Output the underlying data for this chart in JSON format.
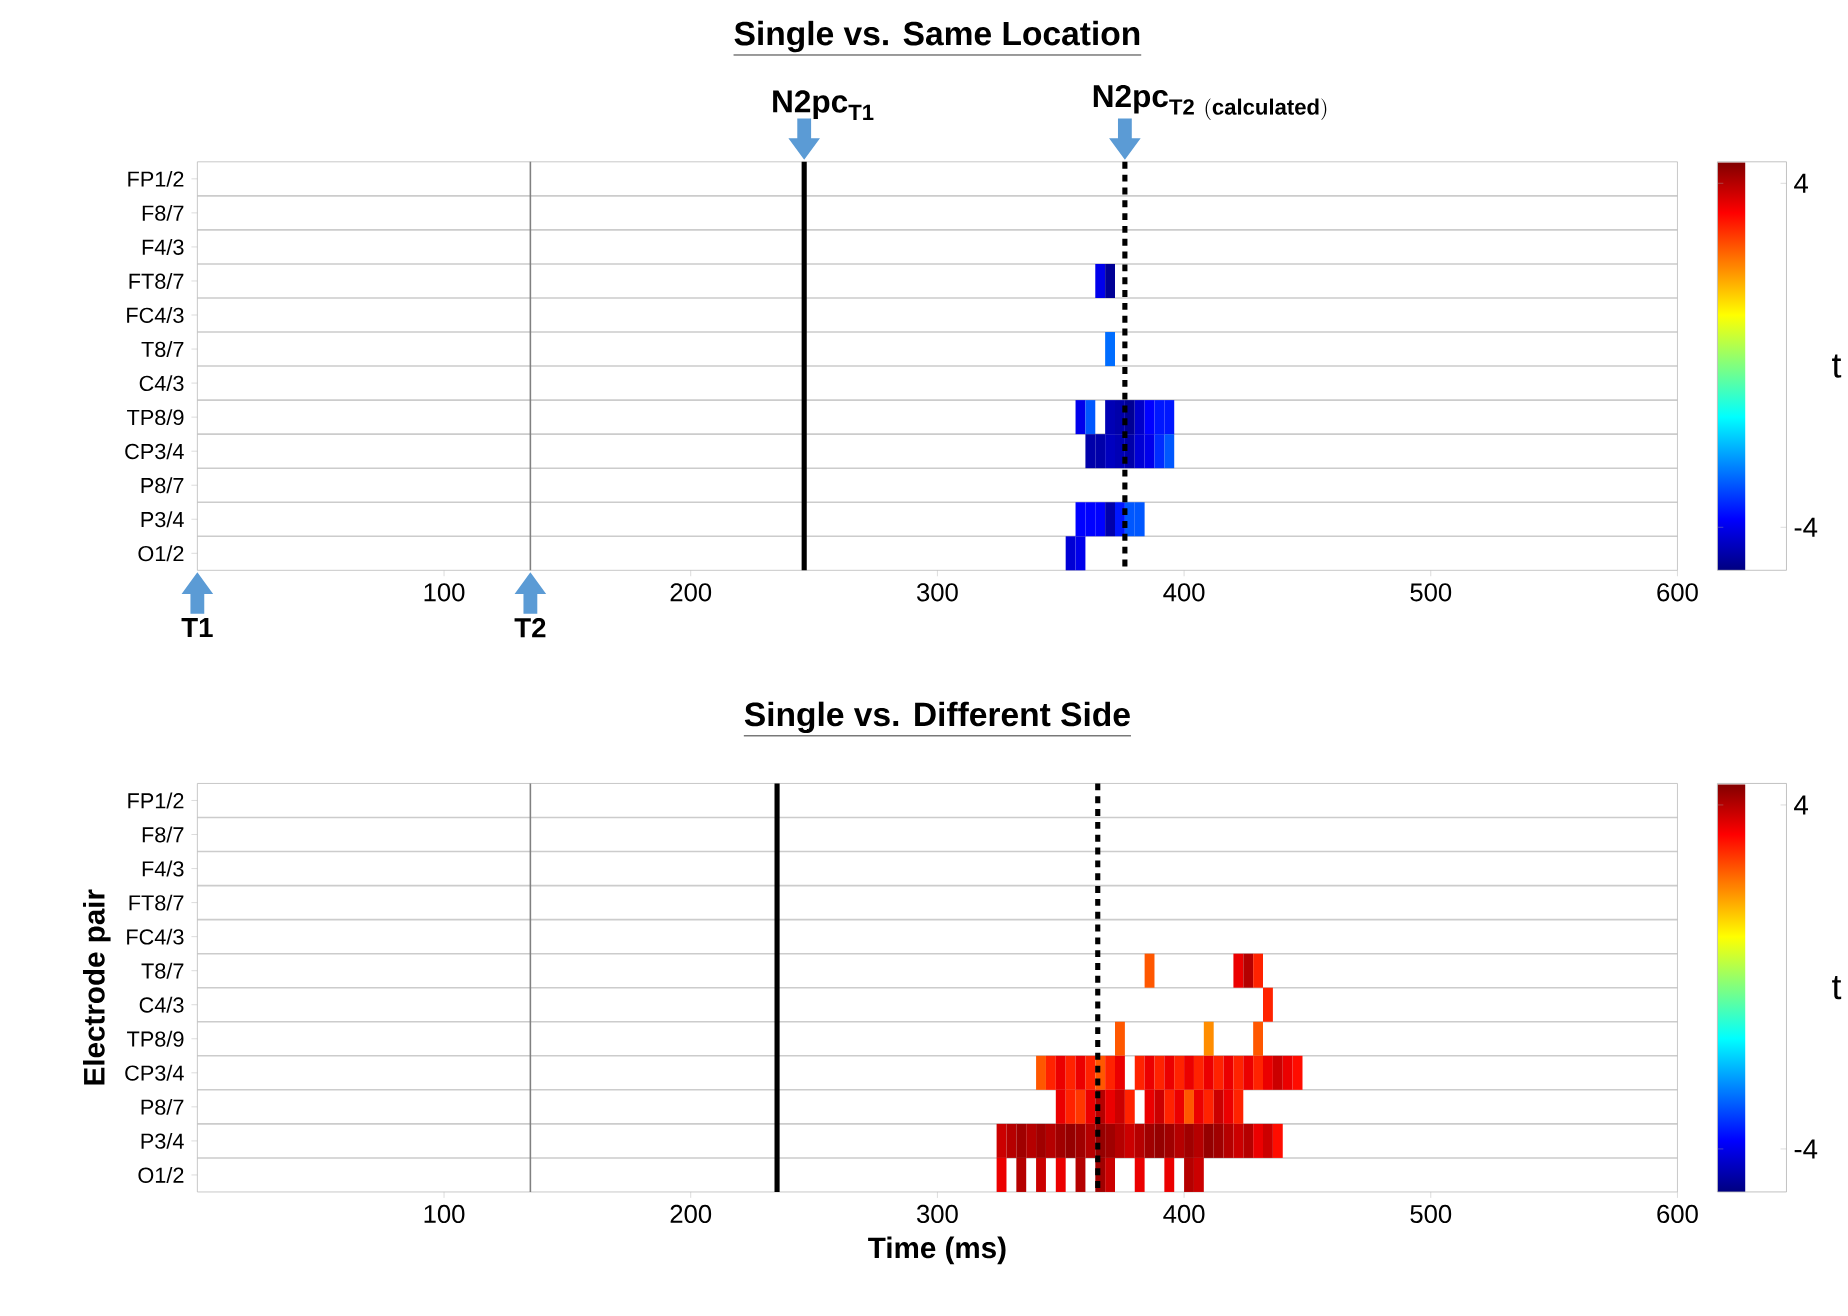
{
  "chart_data": [
    {
      "type": "heatmap",
      "title": "Single vs. Same Location",
      "x": [
        322,
        326,
        330,
        334,
        338,
        342,
        346,
        350,
        354,
        358,
        362,
        366,
        370,
        374,
        378,
        382,
        386,
        390,
        394,
        398,
        402,
        406,
        410,
        414,
        418,
        422,
        426,
        430,
        434,
        438,
        442,
        446,
        450
      ],
      "y_categories": [
        "FP1/2",
        "F8/7",
        "F4/3",
        "FT8/7",
        "FC4/3",
        "T8/7",
        "C4/3",
        "TP8/9",
        "CP3/4",
        "P8/7",
        "P3/4",
        "O1/2"
      ],
      "cells": [
        [
          null,
          null,
          null,
          null,
          null,
          null,
          null,
          null,
          null,
          null,
          null,
          null,
          null,
          null,
          null,
          null,
          null,
          null,
          null,
          null,
          null,
          null,
          null,
          null,
          null,
          null,
          null,
          null,
          null,
          null,
          null,
          null,
          null
        ],
        [
          null,
          null,
          null,
          null,
          null,
          null,
          null,
          null,
          null,
          null,
          null,
          null,
          null,
          null,
          null,
          null,
          null,
          null,
          null,
          null,
          null,
          null,
          null,
          null,
          null,
          null,
          null,
          null,
          null,
          null,
          null,
          null,
          null
        ],
        [
          null,
          null,
          null,
          null,
          null,
          null,
          null,
          null,
          null,
          null,
          null,
          null,
          null,
          null,
          null,
          null,
          null,
          null,
          null,
          null,
          null,
          null,
          null,
          null,
          null,
          null,
          null,
          null,
          null,
          null,
          null,
          null,
          null
        ],
        [
          null,
          null,
          null,
          null,
          null,
          null,
          null,
          null,
          null,
          null,
          null,
          -4,
          -4.8,
          null,
          null,
          null,
          null,
          null,
          null,
          null,
          null,
          null,
          null,
          null,
          null,
          null,
          null,
          null,
          null,
          null,
          null,
          null,
          null
        ],
        [
          null,
          null,
          null,
          null,
          null,
          null,
          null,
          null,
          null,
          null,
          null,
          null,
          null,
          null,
          null,
          null,
          null,
          null,
          null,
          null,
          null,
          null,
          null,
          null,
          null,
          null,
          null,
          null,
          null,
          null,
          null,
          null,
          null
        ],
        [
          null,
          null,
          null,
          null,
          null,
          null,
          null,
          null,
          null,
          null,
          null,
          null,
          -2.8,
          null,
          null,
          null,
          null,
          null,
          null,
          null,
          null,
          null,
          null,
          null,
          null,
          null,
          null,
          null,
          null,
          null,
          null,
          null,
          null
        ],
        [
          null,
          null,
          null,
          null,
          null,
          null,
          null,
          null,
          null,
          null,
          null,
          null,
          null,
          null,
          null,
          null,
          null,
          null,
          null,
          null,
          null,
          null,
          null,
          null,
          null,
          null,
          null,
          null,
          null,
          null,
          null,
          null,
          null
        ],
        [
          null,
          null,
          null,
          null,
          null,
          null,
          null,
          null,
          null,
          -4,
          -3,
          null,
          -4.5,
          -4.6,
          -4.8,
          -4.3,
          -3.8,
          -3.6,
          -3.6,
          null,
          null,
          null,
          null,
          null,
          null,
          null,
          null,
          null,
          null,
          null,
          null,
          null,
          null
        ],
        [
          null,
          null,
          null,
          null,
          null,
          null,
          null,
          null,
          null,
          null,
          -4.6,
          -4.6,
          -4.4,
          -4.5,
          -4.6,
          -4.2,
          -4,
          -3.4,
          -3,
          null,
          null,
          null,
          null,
          null,
          null,
          null,
          null,
          null,
          null,
          null,
          null,
          null,
          null
        ],
        [
          null,
          null,
          null,
          null,
          null,
          null,
          null,
          null,
          null,
          null,
          null,
          null,
          null,
          null,
          null,
          null,
          null,
          null,
          null,
          null,
          null,
          null,
          null,
          null,
          null,
          null,
          null,
          null,
          null,
          null,
          null,
          null,
          null
        ],
        [
          null,
          null,
          null,
          null,
          null,
          null,
          null,
          null,
          null,
          -3.8,
          -3.8,
          -3.8,
          -4.6,
          -3.6,
          -3,
          -3,
          null,
          null,
          null,
          null,
          null,
          null,
          null,
          null,
          null,
          null,
          null,
          null,
          null,
          null,
          null,
          null,
          null
        ],
        [
          null,
          null,
          null,
          null,
          null,
          null,
          null,
          null,
          -4.2,
          -4,
          null,
          null,
          null,
          null,
          null,
          null,
          null,
          null,
          null,
          null,
          null,
          null,
          null,
          null,
          null,
          null,
          null,
          null,
          null,
          null,
          null,
          null,
          null
        ]
      ],
      "xlim": [
        0,
        600
      ],
      "xticks": [
        100,
        200,
        300,
        400,
        500,
        600
      ],
      "clim": [
        -5,
        4.5
      ],
      "cticks": [
        -4,
        4
      ],
      "clabel": "t",
      "grid": "y",
      "ref_lines": [
        {
          "axis": "x",
          "value": 135,
          "label": "\\mathbf{T2}",
          "color": "#808080"
        },
        {
          "axis": "x",
          "value": 246,
          "label": "\\mathbf{N2pc}_{\\mathbf{T1}}",
          "color": "#000000",
          "line_style": "solid"
        },
        {
          "axis": "x",
          "value": 376,
          "label": "\\mathbf{N2pc}_{\\mathbf{T2}\\ \\mathbf{(calculated)}}",
          "color": "#000000",
          "line_style": "dashed"
        }
      ],
      "annotations": [
        "T1"
      ]
    },
    {
      "type": "heatmap",
      "title": "Single vs. Different Side",
      "xlabel": "Time (ms)",
      "ylabel": "Electrode pair",
      "x": [
        322,
        326,
        330,
        334,
        338,
        342,
        346,
        350,
        354,
        358,
        362,
        366,
        370,
        374,
        378,
        382,
        386,
        390,
        394,
        398,
        402,
        406,
        410,
        414,
        418,
        422,
        426,
        430,
        434,
        438,
        442,
        446,
        450
      ],
      "y_categories": [
        "FP1/2",
        "F8/7",
        "F4/3",
        "FT8/7",
        "FC4/3",
        "T8/7",
        "C4/3",
        "TP8/9",
        "CP3/4",
        "P8/7",
        "P3/4",
        "O1/2"
      ],
      "cells": [
        [
          null,
          null,
          null,
          null,
          null,
          null,
          null,
          null,
          null,
          null,
          null,
          null,
          null,
          null,
          null,
          null,
          null,
          null,
          null,
          null,
          null,
          null,
          null,
          null,
          null,
          null,
          null,
          null,
          null,
          null,
          null,
          null,
          null
        ],
        [
          null,
          null,
          null,
          null,
          null,
          null,
          null,
          null,
          null,
          null,
          null,
          null,
          null,
          null,
          null,
          null,
          null,
          null,
          null,
          null,
          null,
          null,
          null,
          null,
          null,
          null,
          null,
          null,
          null,
          null,
          null,
          null,
          null
        ],
        [
          null,
          null,
          null,
          null,
          null,
          null,
          null,
          null,
          null,
          null,
          null,
          null,
          null,
          null,
          null,
          null,
          null,
          null,
          null,
          null,
          null,
          null,
          null,
          null,
          null,
          null,
          null,
          null,
          null,
          null,
          null,
          null,
          null
        ],
        [
          null,
          null,
          null,
          null,
          null,
          null,
          null,
          null,
          null,
          null,
          null,
          null,
          null,
          null,
          null,
          null,
          null,
          null,
          null,
          null,
          null,
          null,
          null,
          null,
          null,
          null,
          null,
          null,
          null,
          null,
          null,
          null,
          null
        ],
        [
          null,
          null,
          null,
          null,
          null,
          null,
          null,
          null,
          null,
          null,
          null,
          null,
          null,
          null,
          null,
          null,
          null,
          null,
          null,
          null,
          null,
          null,
          null,
          null,
          null,
          null,
          null,
          null,
          null,
          null,
          null,
          null,
          null
        ],
        [
          null,
          null,
          null,
          null,
          null,
          null,
          null,
          null,
          null,
          null,
          null,
          null,
          null,
          null,
          null,
          null,
          2.5,
          null,
          null,
          null,
          null,
          null,
          null,
          null,
          null,
          3.5,
          4,
          3,
          null,
          null,
          null,
          null,
          null
        ],
        [
          null,
          null,
          null,
          null,
          null,
          null,
          null,
          null,
          null,
          null,
          null,
          null,
          null,
          null,
          null,
          null,
          null,
          null,
          null,
          null,
          null,
          null,
          null,
          null,
          null,
          null,
          null,
          null,
          3,
          null,
          null,
          null,
          null
        ],
        [
          null,
          null,
          null,
          null,
          null,
          null,
          null,
          null,
          null,
          null,
          null,
          null,
          null,
          2.5,
          null,
          null,
          null,
          null,
          null,
          null,
          null,
          null,
          2,
          null,
          null,
          null,
          null,
          2.5,
          null,
          null,
          null,
          null,
          null
        ],
        [
          null,
          null,
          null,
          null,
          null,
          2.5,
          3,
          3.5,
          3,
          3.5,
          3,
          2.5,
          3,
          3.5,
          null,
          3,
          3.5,
          3,
          3.5,
          3,
          3.5,
          3,
          3.5,
          3,
          3.5,
          3,
          3.5,
          3,
          3.5,
          3.8,
          3.5,
          3.2,
          null
        ],
        [
          null,
          null,
          null,
          null,
          null,
          null,
          null,
          3.5,
          3,
          2.8,
          3.5,
          4,
          3.5,
          3.8,
          3,
          null,
          3.5,
          3.8,
          3,
          3.5,
          2.5,
          3.5,
          3,
          3.8,
          3.5,
          3,
          null,
          null,
          null,
          null,
          null,
          null,
          null
        ],
        [
          null,
          3.8,
          4,
          4.2,
          4,
          4.2,
          4,
          4.2,
          4.3,
          4.2,
          4,
          4.3,
          4.2,
          4,
          3.8,
          4,
          4.2,
          4.3,
          4.2,
          4,
          4.2,
          4,
          4.3,
          4.2,
          4,
          3.8,
          4,
          3.5,
          3.8,
          3.2,
          null,
          null,
          null
        ],
        [
          null,
          3.5,
          null,
          4,
          null,
          3.8,
          null,
          3.5,
          null,
          4,
          null,
          4.2,
          3.8,
          null,
          null,
          3.5,
          null,
          null,
          3.5,
          null,
          4,
          3.8,
          null,
          null,
          null,
          null,
          null,
          null,
          null,
          null,
          null,
          null,
          null
        ]
      ],
      "xlim": [
        0,
        600
      ],
      "xticks": [
        100,
        200,
        300,
        400,
        500,
        600
      ],
      "clim": [
        -5,
        4.5
      ],
      "cticks": [
        -4,
        4
      ],
      "clabel": "t",
      "grid": "y",
      "ref_lines": [
        {
          "axis": "x",
          "value": 135,
          "color": "#808080"
        },
        {
          "axis": "x",
          "value": 235,
          "color": "#000000",
          "line_style": "solid"
        },
        {
          "axis": "x",
          "value": 365,
          "color": "#000000",
          "line_style": "dashed"
        }
      ]
    }
  ]
}
